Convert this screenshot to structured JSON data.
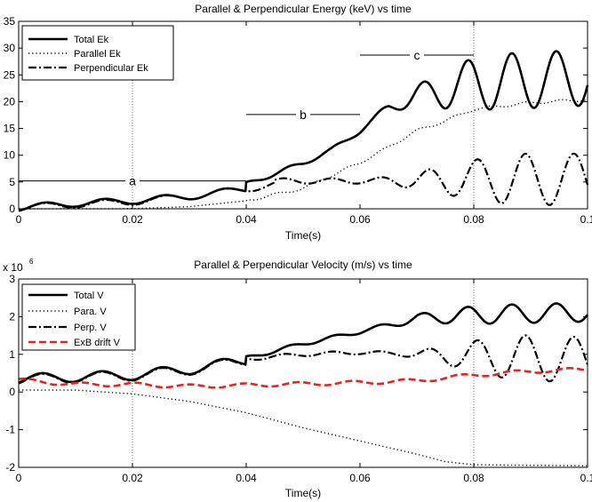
{
  "chart_data": [
    {
      "type": "line",
      "title": "Parallel & Perpendicular Energy (keV) vs time",
      "xlabel": "Time(s)",
      "ylabel": "",
      "xlim": [
        0,
        0.1
      ],
      "ylim": [
        0,
        35
      ],
      "xticks": [
        "0",
        "0.02",
        "0.04",
        "0.06",
        "0.08",
        "0.1"
      ],
      "yticks": [
        "0",
        "5",
        "10",
        "15",
        "20",
        "25",
        "30",
        "35"
      ],
      "legend_position": "top-left",
      "series": [
        {
          "name": "Total Ek",
          "style": "solid",
          "color": "#000000"
        },
        {
          "name": "Parallel Ek",
          "style": "dotted",
          "color": "#000000"
        },
        {
          "name": "Perpendicular Ek",
          "style": "dashdot",
          "color": "#000000"
        }
      ],
      "annotations": [
        {
          "label": "a",
          "x_range": [
            0,
            0.04
          ],
          "y": 5.2
        },
        {
          "label": "b",
          "x_range": [
            0.04,
            0.06
          ],
          "y": 17.6
        },
        {
          "label": "c",
          "x_range": [
            0.06,
            0.08
          ],
          "y": 28.7
        }
      ],
      "markers_x": [
        0.02,
        0.08
      ]
    },
    {
      "type": "line",
      "title": "Parallel & Perpendicular Velocity (m/s) vs time",
      "xlabel": "Time(s)",
      "ylabel": "",
      "exponent_label": "x 10",
      "exponent_power": "6",
      "xlim": [
        0,
        0.1
      ],
      "ylim": [
        -2,
        3
      ],
      "xticks": [
        "0",
        "0.02",
        "0.04",
        "0.06",
        "0.08",
        "0.1"
      ],
      "yticks": [
        "-2",
        "-1",
        "0",
        "1",
        "2",
        "3"
      ],
      "legend_position": "top-left",
      "series": [
        {
          "name": "Total V",
          "style": "solid",
          "color": "#000000"
        },
        {
          "name": "Para. V",
          "style": "dotted",
          "color": "#000000"
        },
        {
          "name": "Perp. V",
          "style": "dashdot",
          "color": "#000000"
        },
        {
          "name": "ExB drift V",
          "style": "dashed",
          "color": "#e8231f"
        }
      ],
      "markers_x": [
        0.02,
        0.08
      ]
    }
  ]
}
